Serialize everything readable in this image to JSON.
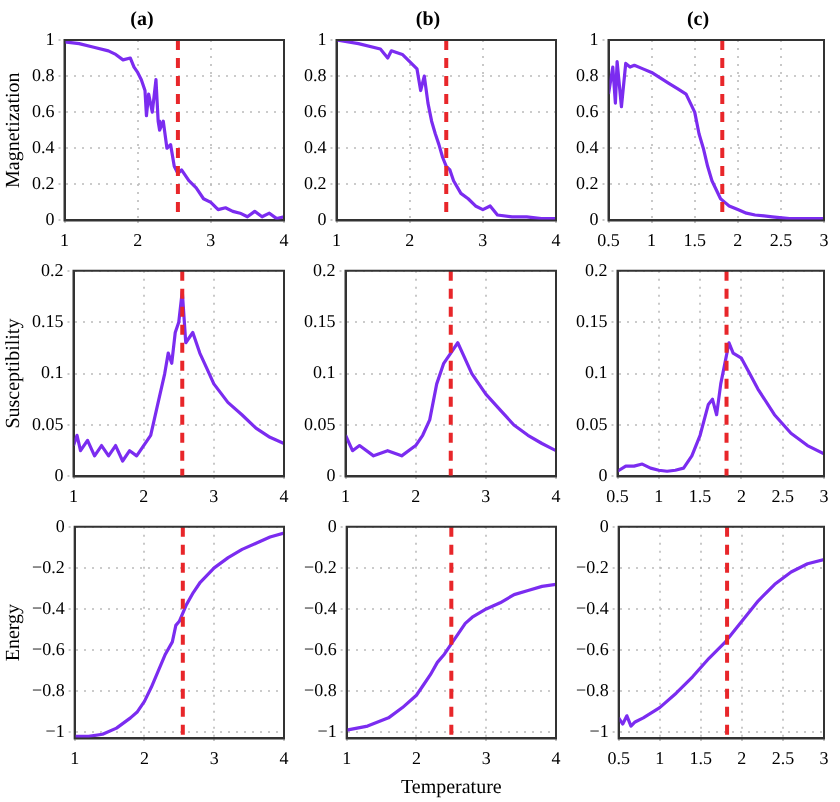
{
  "chart_data": [
    {
      "type": "line",
      "title": "(a)",
      "ylabel": "Magnetization",
      "xlim": [
        1,
        4
      ],
      "xticks": [
        1,
        2,
        3,
        4
      ],
      "ylim": [
        0,
        1
      ],
      "yticks": [
        0,
        0.2,
        0.4,
        0.6,
        0.8,
        1
      ],
      "grid": true,
      "legend": false,
      "ref_lines": [
        {
          "axis": "x",
          "value": 2.55,
          "color": "#e8262a",
          "line_style": "dashed"
        }
      ],
      "series": [
        {
          "color": "#7b2cf0",
          "x": [
            1,
            1.2,
            1.4,
            1.6,
            1.7,
            1.8,
            1.9,
            1.95,
            2,
            2.05,
            2.1,
            2.12,
            2.15,
            2.2,
            2.25,
            2.28,
            2.3,
            2.35,
            2.4,
            2.45,
            2.5,
            2.55,
            2.6,
            2.7,
            2.8,
            2.9,
            3,
            3.1,
            3.2,
            3.3,
            3.4,
            3.5,
            3.6,
            3.7,
            3.8,
            3.9,
            4
          ],
          "values": [
            0.99,
            0.98,
            0.96,
            0.94,
            0.92,
            0.89,
            0.9,
            0.85,
            0.82,
            0.78,
            0.72,
            0.58,
            0.7,
            0.6,
            0.78,
            0.55,
            0.5,
            0.55,
            0.4,
            0.42,
            0.3,
            0.26,
            0.28,
            0.22,
            0.18,
            0.12,
            0.1,
            0.06,
            0.07,
            0.05,
            0.04,
            0.02,
            0.05,
            0.02,
            0.04,
            0.01,
            0.02
          ]
        }
      ]
    },
    {
      "type": "line",
      "title": "(b)",
      "xlim": [
        1,
        4
      ],
      "xticks": [
        1,
        2,
        3,
        4
      ],
      "ylim": [
        0,
        1
      ],
      "yticks": [
        0,
        0.2,
        0.4,
        0.6,
        0.8,
        1
      ],
      "grid": true,
      "legend": false,
      "ref_lines": [
        {
          "axis": "x",
          "value": 2.5,
          "color": "#e8262a",
          "line_style": "dashed"
        }
      ],
      "series": [
        {
          "color": "#7b2cf0",
          "x": [
            1,
            1.3,
            1.6,
            1.7,
            1.75,
            1.9,
            2,
            2.1,
            2.15,
            2.2,
            2.25,
            2.3,
            2.35,
            2.4,
            2.45,
            2.5,
            2.55,
            2.6,
            2.7,
            2.8,
            2.9,
            3,
            3.1,
            3.2,
            3.4,
            3.6,
            3.8,
            4
          ],
          "values": [
            1,
            0.98,
            0.95,
            0.9,
            0.94,
            0.92,
            0.88,
            0.84,
            0.72,
            0.8,
            0.65,
            0.55,
            0.48,
            0.42,
            0.35,
            0.3,
            0.28,
            0.22,
            0.15,
            0.12,
            0.08,
            0.06,
            0.08,
            0.03,
            0.02,
            0.02,
            0.01,
            0.01
          ]
        }
      ]
    },
    {
      "type": "line",
      "title": "(c)",
      "xlim": [
        0.5,
        3
      ],
      "xticks": [
        0.5,
        1,
        1.5,
        2,
        2.5,
        3
      ],
      "ylim": [
        0,
        1
      ],
      "yticks": [
        0,
        0.2,
        0.4,
        0.6,
        0.8,
        1
      ],
      "grid": true,
      "legend": false,
      "ref_lines": [
        {
          "axis": "x",
          "value": 1.82,
          "color": "#e8262a",
          "line_style": "dashed"
        }
      ],
      "series": [
        {
          "color": "#7b2cf0",
          "x": [
            0.5,
            0.55,
            0.58,
            0.6,
            0.65,
            0.7,
            0.75,
            0.8,
            0.9,
            1,
            1.1,
            1.2,
            1.3,
            1.4,
            1.45,
            1.5,
            1.55,
            1.6,
            1.65,
            1.7,
            1.75,
            1.8,
            1.85,
            1.9,
            2,
            2.1,
            2.2,
            2.4,
            2.6,
            2.8,
            3
          ],
          "values": [
            0.7,
            0.85,
            0.65,
            0.88,
            0.63,
            0.87,
            0.85,
            0.86,
            0.84,
            0.82,
            0.79,
            0.76,
            0.73,
            0.7,
            0.65,
            0.6,
            0.48,
            0.4,
            0.3,
            0.22,
            0.17,
            0.12,
            0.1,
            0.08,
            0.06,
            0.04,
            0.03,
            0.02,
            0.01,
            0.01,
            0.01
          ]
        }
      ]
    },
    {
      "type": "line",
      "ylabel": "Susceptibility",
      "xlim": [
        1,
        4
      ],
      "xticks": [
        1,
        2,
        3,
        4
      ],
      "ylim": [
        0,
        0.2
      ],
      "yticks": [
        0,
        0.05,
        0.1,
        0.15,
        0.2
      ],
      "grid": true,
      "legend": false,
      "ref_lines": [
        {
          "axis": "x",
          "value": 2.55,
          "color": "#e8262a",
          "line_style": "dashed"
        }
      ],
      "series": [
        {
          "color": "#7b2cf0",
          "x": [
            1,
            1.05,
            1.1,
            1.2,
            1.3,
            1.4,
            1.5,
            1.6,
            1.7,
            1.8,
            1.9,
            2,
            2.1,
            2.2,
            2.3,
            2.35,
            2.4,
            2.45,
            2.5,
            2.55,
            2.6,
            2.7,
            2.8,
            2.9,
            3,
            3.2,
            3.4,
            3.6,
            3.8,
            4
          ],
          "values": [
            0.03,
            0.04,
            0.025,
            0.035,
            0.02,
            0.03,
            0.02,
            0.03,
            0.015,
            0.025,
            0.02,
            0.03,
            0.04,
            0.07,
            0.1,
            0.12,
            0.11,
            0.14,
            0.15,
            0.18,
            0.13,
            0.14,
            0.12,
            0.105,
            0.09,
            0.072,
            0.06,
            0.047,
            0.038,
            0.032
          ]
        }
      ]
    },
    {
      "type": "line",
      "xlim": [
        1,
        4
      ],
      "xticks": [
        1,
        2,
        3,
        4
      ],
      "ylim": [
        0,
        0.2
      ],
      "yticks": [
        0,
        0.05,
        0.1,
        0.15,
        0.2
      ],
      "grid": true,
      "legend": false,
      "ref_lines": [
        {
          "axis": "x",
          "value": 2.5,
          "color": "#e8262a",
          "line_style": "dashed"
        }
      ],
      "series": [
        {
          "color": "#7b2cf0",
          "x": [
            1,
            1.1,
            1.2,
            1.4,
            1.6,
            1.8,
            2,
            2.1,
            2.2,
            2.3,
            2.4,
            2.5,
            2.6,
            2.7,
            2.8,
            3,
            3.2,
            3.4,
            3.6,
            3.8,
            4
          ],
          "values": [
            0.04,
            0.025,
            0.03,
            0.02,
            0.025,
            0.02,
            0.03,
            0.04,
            0.055,
            0.09,
            0.11,
            0.12,
            0.13,
            0.115,
            0.1,
            0.08,
            0.065,
            0.05,
            0.04,
            0.032,
            0.025
          ]
        }
      ]
    },
    {
      "type": "line",
      "xlim": [
        0.5,
        3
      ],
      "xticks": [
        0.5,
        1,
        1.5,
        2,
        2.5,
        3
      ],
      "ylim": [
        0,
        0.2
      ],
      "yticks": [
        0,
        0.05,
        0.1,
        0.15,
        0.2
      ],
      "grid": true,
      "legend": false,
      "ref_lines": [
        {
          "axis": "x",
          "value": 1.82,
          "color": "#e8262a",
          "line_style": "dashed"
        }
      ],
      "series": [
        {
          "color": "#7b2cf0",
          "x": [
            0.5,
            0.6,
            0.7,
            0.8,
            0.9,
            1,
            1.1,
            1.2,
            1.3,
            1.4,
            1.5,
            1.6,
            1.65,
            1.7,
            1.75,
            1.8,
            1.85,
            1.9,
            2,
            2.1,
            2.2,
            2.4,
            2.6,
            2.8,
            3
          ],
          "values": [
            0.005,
            0.01,
            0.01,
            0.012,
            0.008,
            0.006,
            0.005,
            0.006,
            0.008,
            0.02,
            0.04,
            0.07,
            0.075,
            0.06,
            0.09,
            0.11,
            0.13,
            0.12,
            0.115,
            0.1,
            0.085,
            0.06,
            0.042,
            0.03,
            0.022
          ]
        }
      ]
    },
    {
      "type": "line",
      "ylabel": "Energy",
      "xlim": [
        1,
        4
      ],
      "xticks": [
        1,
        2,
        3,
        4
      ],
      "ylim": [
        -1.03,
        0
      ],
      "yticks": [
        {
          "value": -1,
          "label": "−1"
        },
        {
          "value": -0.8,
          "label": "−0.8"
        },
        {
          "value": -0.6,
          "label": "−0.6"
        },
        {
          "value": -0.4,
          "label": "−0.4"
        },
        {
          "value": -0.2,
          "label": "−0.2"
        },
        0
      ],
      "grid": true,
      "legend": false,
      "ref_lines": [
        {
          "axis": "x",
          "value": 2.55,
          "color": "#e8262a",
          "line_style": "dashed"
        }
      ],
      "series": [
        {
          "color": "#7b2cf0",
          "x": [
            1,
            1.2,
            1.4,
            1.6,
            1.8,
            1.9,
            2,
            2.1,
            2.2,
            2.3,
            2.4,
            2.45,
            2.5,
            2.6,
            2.7,
            2.8,
            3,
            3.2,
            3.4,
            3.6,
            3.8,
            4
          ],
          "values": [
            -1.02,
            -1.02,
            -1.01,
            -0.98,
            -0.93,
            -0.9,
            -0.85,
            -0.78,
            -0.7,
            -0.62,
            -0.56,
            -0.48,
            -0.46,
            -0.38,
            -0.32,
            -0.27,
            -0.2,
            -0.15,
            -0.11,
            -0.08,
            -0.05,
            -0.03
          ]
        }
      ]
    },
    {
      "type": "line",
      "xlabel": "Temperature",
      "xlim": [
        1,
        4
      ],
      "xticks": [
        1,
        2,
        3,
        4
      ],
      "ylim": [
        -1.03,
        0
      ],
      "yticks": [
        {
          "value": -1,
          "label": "−1"
        },
        {
          "value": -0.8,
          "label": "−0.8"
        },
        {
          "value": -0.6,
          "label": "−0.6"
        },
        {
          "value": -0.4,
          "label": "−0.4"
        },
        {
          "value": -0.2,
          "label": "−0.2"
        },
        0
      ],
      "grid": true,
      "legend": false,
      "ref_lines": [
        {
          "axis": "x",
          "value": 2.5,
          "color": "#e8262a",
          "line_style": "dashed"
        }
      ],
      "series": [
        {
          "color": "#7b2cf0",
          "x": [
            1,
            1.3,
            1.6,
            1.8,
            2,
            2.1,
            2.2,
            2.3,
            2.4,
            2.5,
            2.6,
            2.7,
            2.8,
            3,
            3.2,
            3.4,
            3.6,
            3.8,
            4
          ],
          "values": [
            -0.99,
            -0.97,
            -0.93,
            -0.88,
            -0.82,
            -0.77,
            -0.72,
            -0.66,
            -0.62,
            -0.57,
            -0.52,
            -0.47,
            -0.44,
            -0.4,
            -0.37,
            -0.33,
            -0.31,
            -0.29,
            -0.28
          ]
        }
      ]
    },
    {
      "type": "line",
      "xlim": [
        0.5,
        3
      ],
      "xticks": [
        0.5,
        1,
        1.5,
        2,
        2.5,
        3
      ],
      "ylim": [
        -1.03,
        0
      ],
      "yticks": [
        {
          "value": -1,
          "label": "−1"
        },
        {
          "value": -0.8,
          "label": "−0.8"
        },
        {
          "value": -0.6,
          "label": "−0.6"
        },
        {
          "value": -0.4,
          "label": "−0.4"
        },
        {
          "value": -0.2,
          "label": "−0.2"
        },
        0
      ],
      "grid": true,
      "legend": false,
      "ref_lines": [
        {
          "axis": "x",
          "value": 1.82,
          "color": "#e8262a",
          "line_style": "dashed"
        }
      ],
      "series": [
        {
          "color": "#7b2cf0",
          "x": [
            0.5,
            0.55,
            0.6,
            0.65,
            0.7,
            0.8,
            1,
            1.2,
            1.4,
            1.6,
            1.8,
            2,
            2.2,
            2.4,
            2.6,
            2.8,
            3
          ],
          "values": [
            -0.93,
            -0.96,
            -0.92,
            -0.97,
            -0.95,
            -0.93,
            -0.88,
            -0.81,
            -0.73,
            -0.64,
            -0.56,
            -0.46,
            -0.36,
            -0.28,
            -0.22,
            -0.18,
            -0.16
          ]
        }
      ]
    }
  ]
}
